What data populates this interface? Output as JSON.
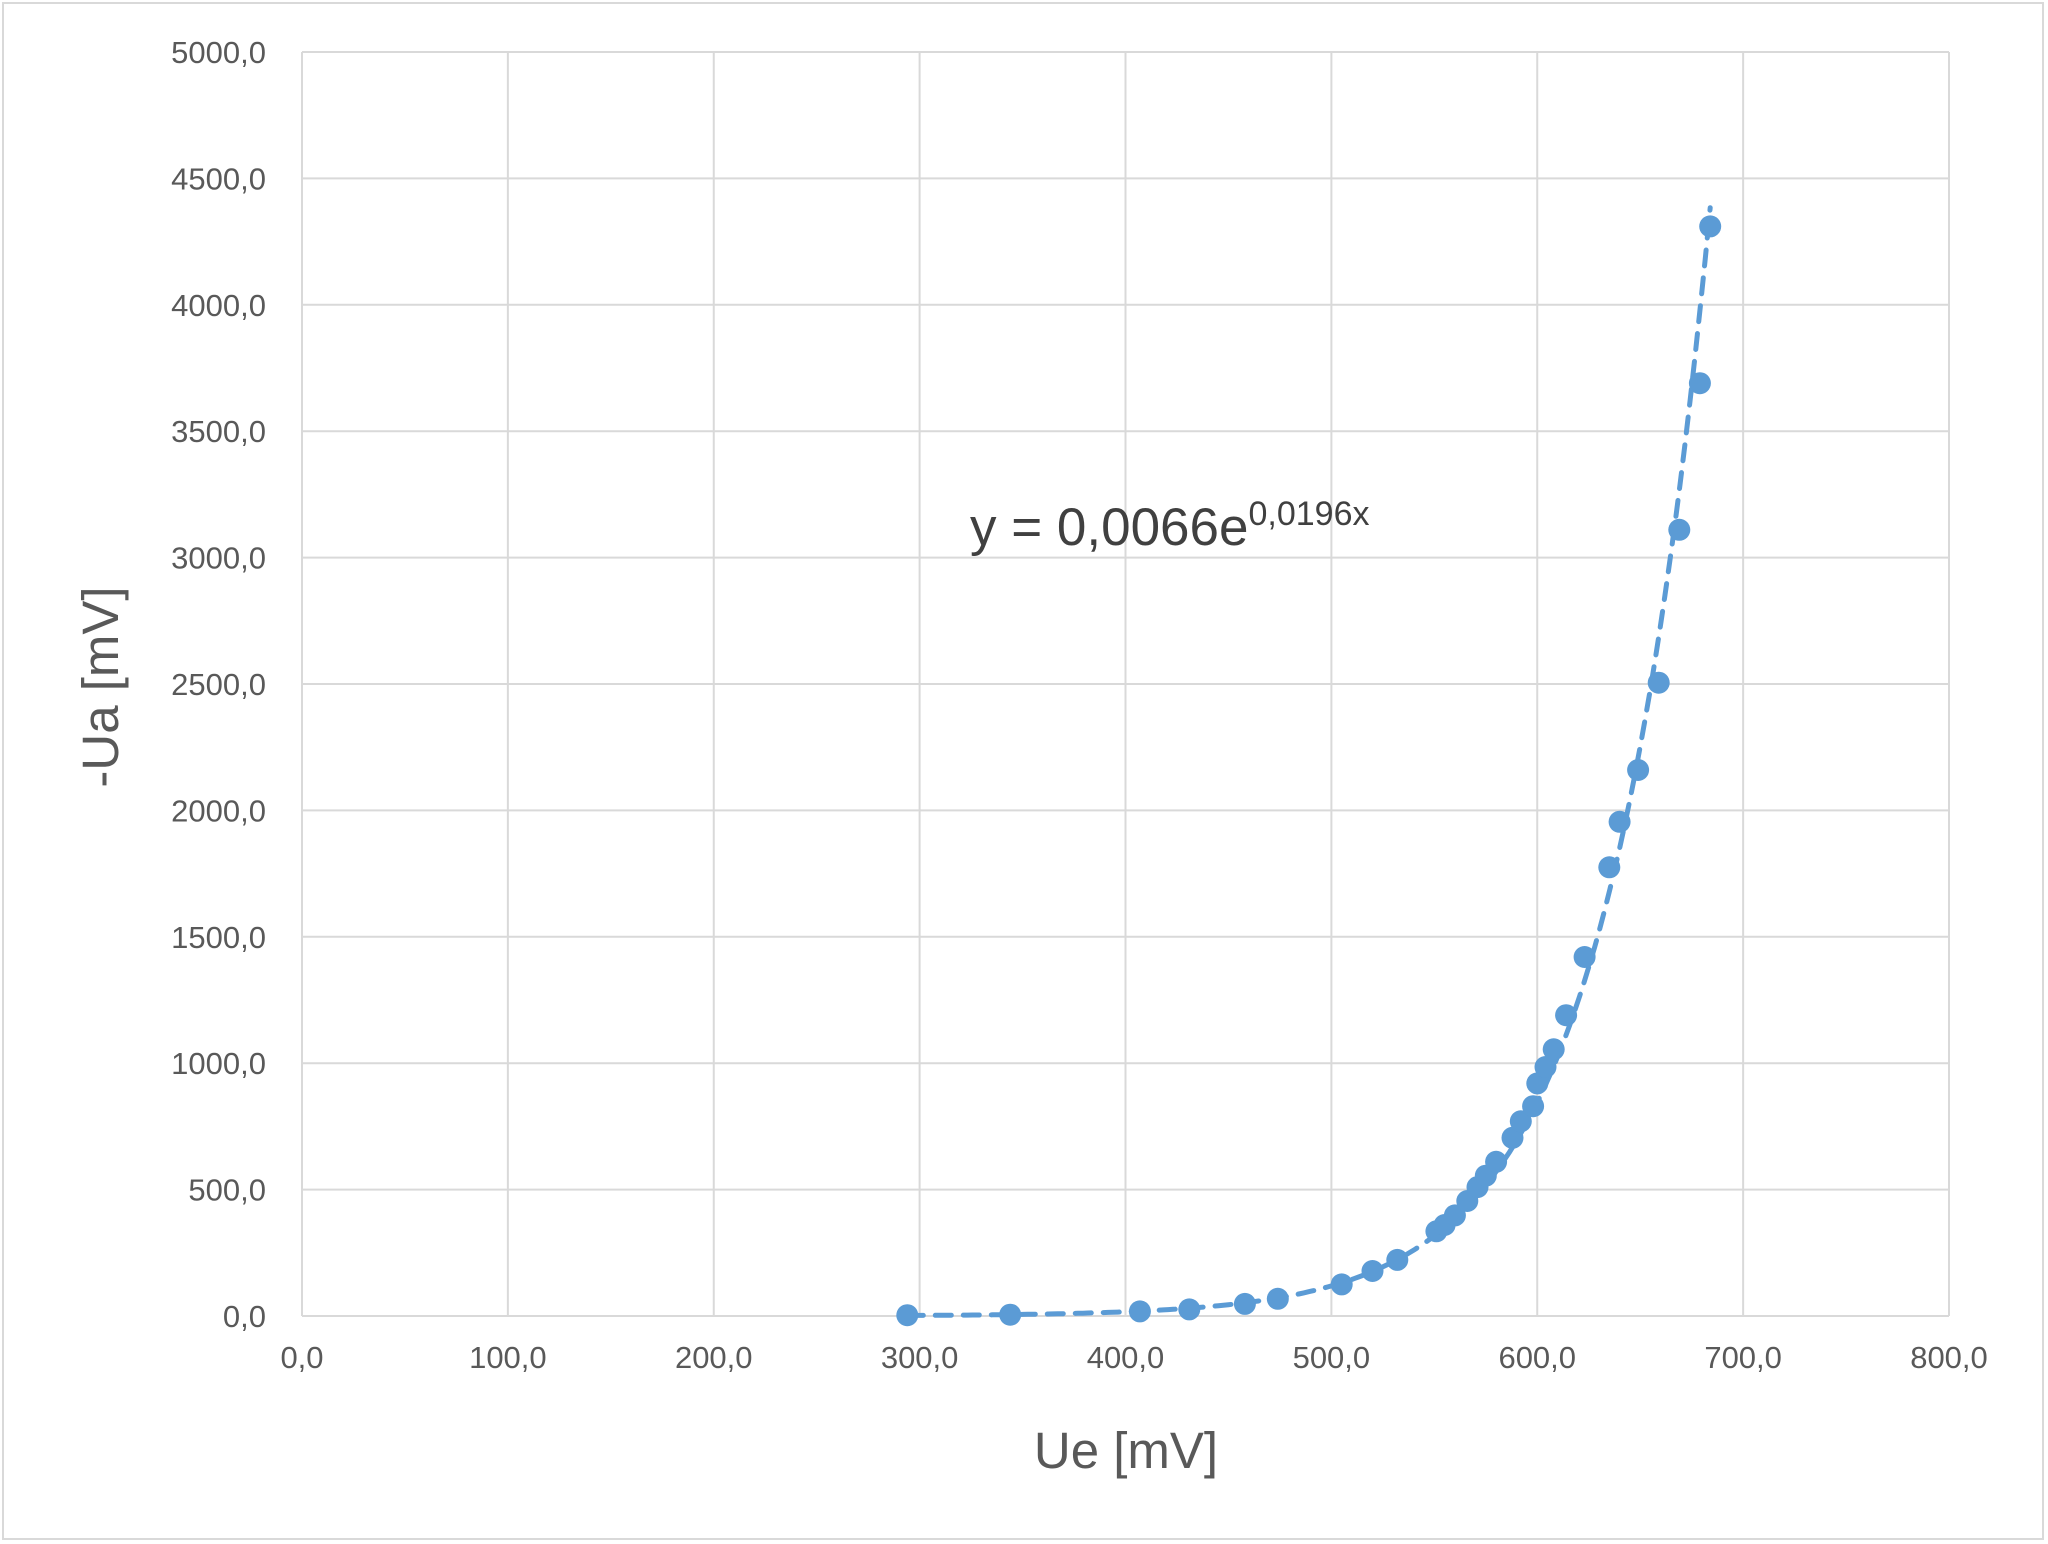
{
  "chart_data": {
    "type": "scatter",
    "title": "",
    "xlabel": "Ue [mV]",
    "ylabel": "-Ua [mV]",
    "xlim": [
      0,
      800
    ],
    "ylim": [
      0,
      5000
    ],
    "x_ticks": [
      "0,0",
      "100,0",
      "200,0",
      "300,0",
      "400,0",
      "500,0",
      "600,0",
      "700,0",
      "800,0"
    ],
    "y_ticks": [
      "0,0",
      "500,0",
      "1000,0",
      "1500,0",
      "2000,0",
      "2500,0",
      "3000,0",
      "3500,0",
      "4000,0",
      "4500,0",
      "5000,0"
    ],
    "grid": true,
    "marker_color": "#5b9bd5",
    "series": [
      {
        "points": [
          [
            294,
            3
          ],
          [
            344,
            5
          ],
          [
            407,
            18
          ],
          [
            431,
            26
          ],
          [
            458,
            48
          ],
          [
            474,
            68
          ],
          [
            505,
            125
          ],
          [
            520,
            178
          ],
          [
            532,
            222
          ],
          [
            551,
            335
          ],
          [
            555,
            360
          ],
          [
            560,
            398
          ],
          [
            566,
            455
          ],
          [
            571,
            510
          ],
          [
            575,
            555
          ],
          [
            580,
            610
          ],
          [
            588,
            705
          ],
          [
            592,
            770
          ],
          [
            598,
            830
          ],
          [
            600,
            920
          ],
          [
            604,
            985
          ],
          [
            608,
            1055
          ],
          [
            614,
            1190
          ],
          [
            623,
            1420
          ],
          [
            635,
            1775
          ],
          [
            640,
            1955
          ],
          [
            649,
            2160
          ],
          [
            659,
            2505
          ],
          [
            669,
            3110
          ],
          [
            679,
            3690
          ],
          [
            684,
            4310
          ]
        ]
      }
    ],
    "trendline": {
      "type": "exponential",
      "a": 0.0066,
      "b": 0.0196,
      "x_range": [
        294,
        684
      ],
      "style": "dashed",
      "color": "#5b9bd5",
      "equation_base": "y = 0,0066e",
      "equation_exponent": "0,0196x"
    }
  }
}
